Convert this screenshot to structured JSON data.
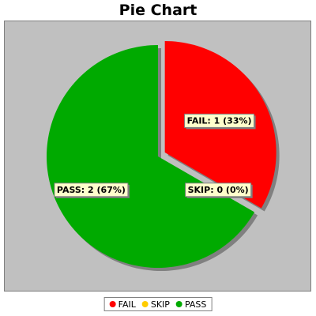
{
  "chart_data": {
    "type": "pie",
    "title": "Pie Chart",
    "categories": [
      "FAIL",
      "SKIP",
      "PASS"
    ],
    "values": [
      1,
      0,
      2
    ],
    "labels": [
      "FAIL: 1 (33%)",
      "SKIP: 0 (0%)",
      "PASS: 2 (67%)"
    ],
    "colors": [
      "#ff0000",
      "#ffcc00",
      "#00aa00"
    ],
    "exploded": "FAIL",
    "legend_position": "bottom"
  }
}
